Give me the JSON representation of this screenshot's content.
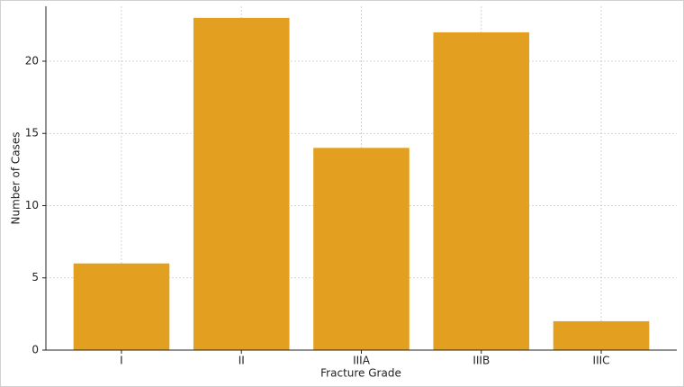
{
  "chart_data": {
    "type": "bar",
    "x_label": "Fracture Grade",
    "y_label": "Number of Cases",
    "categories": [
      "I",
      "II",
      "IIIA",
      "IIIB",
      "IIIC"
    ],
    "values": [
      6,
      23,
      14,
      22,
      2
    ],
    "color": "#e3a020",
    "ylim": [
      0,
      23.8
    ],
    "yticks": [
      0,
      5,
      10,
      15,
      20
    ],
    "grid": true
  }
}
